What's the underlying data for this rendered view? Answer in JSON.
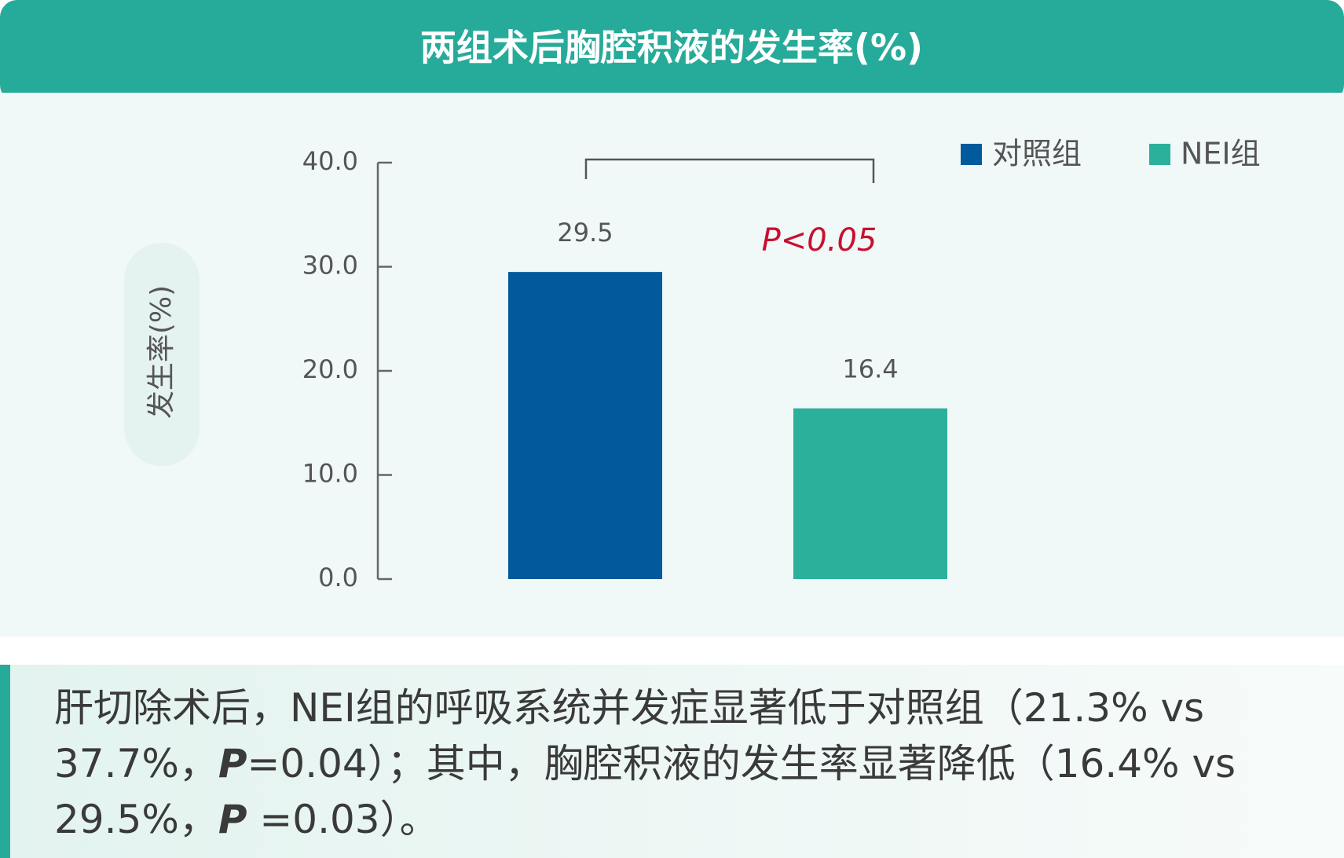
{
  "chart_data": {
    "type": "bar",
    "title": "两组术后胸腔积液的发生率(%)",
    "y_label": "发生率(%)",
    "categories": [
      null,
      null
    ],
    "series": [
      {
        "name": "对照组",
        "color": "#005a9c",
        "values": [
          29.5,
          null
        ]
      },
      {
        "name": "NEI组",
        "color": "#2bb09c",
        "values": [
          null,
          16.4
        ]
      }
    ],
    "ylim": [
      0,
      40
    ],
    "yticks": [
      {
        "value": 0,
        "label": "0.0"
      },
      {
        "value": 10,
        "label": "10.0"
      },
      {
        "value": 20,
        "label": "20.0"
      },
      {
        "value": 30,
        "label": "30.0"
      },
      {
        "value": 40,
        "label": "40.0"
      }
    ],
    "annotations": [
      "P<0.05"
    ],
    "legend": "top-right"
  },
  "caption": [
    "肝切除术后，NEI组的呼吸系统并发症显著低于对照组（21.3%  vs 37.7%，",
    "P",
    "=0.04）；其中，胸腔积液的发生率显著降低（16.4% vs 29.5%，",
    "P",
    " =0.03）。"
  ]
}
